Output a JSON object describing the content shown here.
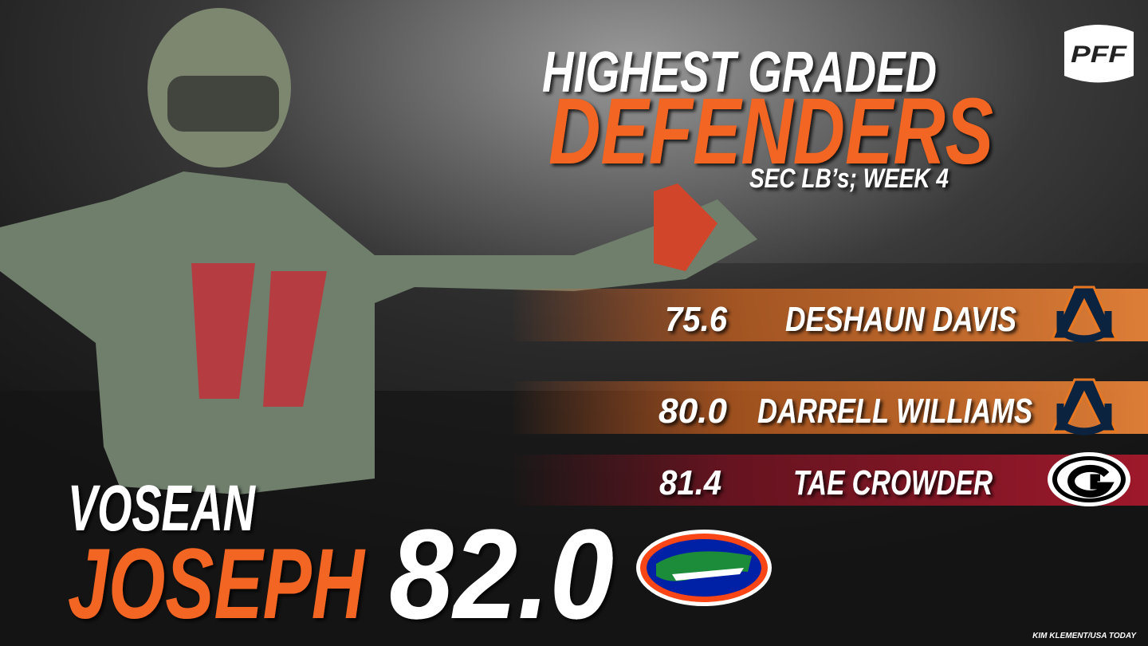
{
  "header": {
    "title": "HIGHEST GRADED",
    "highlight": "DEFENDERS",
    "subtitle": "SEC LB’s; WEEK 4"
  },
  "logo": "PFF",
  "featured": {
    "first_name": "VOSEAN",
    "last_name": "JOSEPH",
    "grade": "82.0"
  },
  "rankings": [
    {
      "grade": "75.6",
      "name": "DESHAUN DAVIS"
    },
    {
      "grade": "80.0",
      "name": "DARRELL WILLIAMS"
    },
    {
      "grade": "81.4",
      "name": "TAE CROWDER"
    }
  ],
  "credit": "KIM KLEMENT/USA TODAY"
}
